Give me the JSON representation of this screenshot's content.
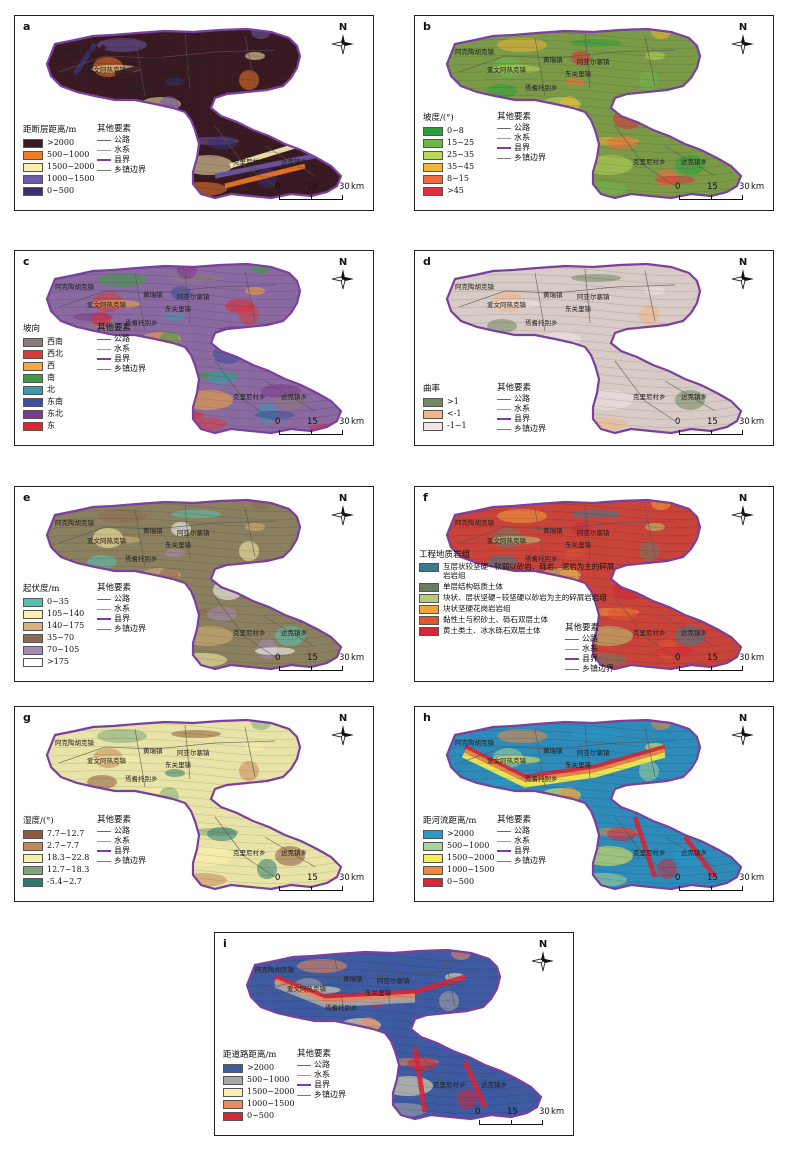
{
  "compass_letter": "N",
  "scale": {
    "ticks": [
      "0",
      "15",
      "30"
    ],
    "unit": "km"
  },
  "other_title": "其他要素",
  "other_items": [
    {
      "label": "公路",
      "color": "#666666"
    },
    {
      "label": "水系",
      "color": "#9a9a9a"
    },
    {
      "label": "县界",
      "color": "#7b3f9e"
    },
    {
      "label": "乡镇边界",
      "color": "#777777"
    }
  ],
  "towns": [
    "阿克陶胡克镇",
    "黄瑞镇",
    "阿亚尔塞镇",
    "爱文阿热克镇",
    "东关里镇",
    "焉耆托别乡",
    "克里尼村乡",
    "达克镇乡"
  ],
  "panels": [
    {
      "label": "a",
      "legend_title": "距断层距离/m",
      "base": "#3a1a22",
      "classes": [
        {
          "label": ">2000",
          "color": "#3a1a22"
        },
        {
          "label": "500~1000",
          "color": "#ef7a28"
        },
        {
          "label": "1500~2000",
          "color": "#fbeeb0"
        },
        {
          "label": "1000~1500",
          "color": "#6b5aa8"
        },
        {
          "label": "0~500",
          "color": "#3b3170"
        }
      ]
    },
    {
      "label": "b",
      "legend_title": "坡度/(°)",
      "base": "#7a9a48",
      "classes": [
        {
          "label": "0~8",
          "color": "#2e9e3c"
        },
        {
          "label": "15~25",
          "color": "#6fb64a"
        },
        {
          "label": "25~35",
          "color": "#b9d65a"
        },
        {
          "label": "35~45",
          "color": "#f4b43a"
        },
        {
          "label": "8~15",
          "color": "#ef6a3c"
        },
        {
          "label": ">45",
          "color": "#e02e3a"
        }
      ]
    },
    {
      "label": "c",
      "legend_title": "坡向",
      "base": "#8a6aa0",
      "classes": [
        {
          "label": "西南",
          "color": "#8c7b78"
        },
        {
          "label": "西北",
          "color": "#d83a3a"
        },
        {
          "label": "西",
          "color": "#f4a93a"
        },
        {
          "label": "南",
          "color": "#3e9a44"
        },
        {
          "label": "北",
          "color": "#3a9ab0"
        },
        {
          "label": "东南",
          "color": "#3c4f9a"
        },
        {
          "label": "东北",
          "color": "#7e3a8e"
        },
        {
          "label": "东",
          "color": "#e3262e"
        }
      ]
    },
    {
      "label": "d",
      "legend_title": "曲率",
      "base": "#d8cbc6",
      "classes": [
        {
          "label": ">1",
          "color": "#6f8a5e"
        },
        {
          "label": "<-1",
          "color": "#f3b683"
        },
        {
          "label": "-1~1",
          "color": "#f4e3e8"
        }
      ]
    },
    {
      "label": "e",
      "legend_title": "起伏度/m",
      "base": "#8a8060",
      "classes": [
        {
          "label": "0~35",
          "color": "#58c0b0"
        },
        {
          "label": "105~140",
          "color": "#fbf0a8"
        },
        {
          "label": "140~175",
          "color": "#d8b278"
        },
        {
          "label": "35~70",
          "color": "#8e6a52"
        },
        {
          "label": "70~105",
          "color": "#a58ab8"
        },
        {
          "label": ">175",
          "color": "#ffffff"
        }
      ]
    },
    {
      "label": "f",
      "legend_title": "工程地质岩组",
      "base": "#c8443a",
      "classes": [
        {
          "label": "互层状较坚硬~软弱以砂岩、砾岩、泥岩为主的碎屑岩岩组",
          "color": "#3e7a8e"
        },
        {
          "label": "单层结构砾质土体",
          "color": "#6e7a64"
        },
        {
          "label": "块状、层状坚硬~较坚硬以砂岩为主的碎屑岩岩组",
          "color": "#b6cc7a"
        },
        {
          "label": "块状坚硬花岗岩岩组",
          "color": "#f3a23c"
        },
        {
          "label": "黏性土与积砂土、砾石双层土体",
          "color": "#e0562e"
        },
        {
          "label": "黄土类土、冰水砾石双层土体",
          "color": "#d6263a"
        }
      ]
    },
    {
      "label": "g",
      "legend_title": "湿度/(°)",
      "base": "#e8e4a8",
      "classes": [
        {
          "label": "7.7~12.7",
          "color": "#8e5a3c"
        },
        {
          "label": "2.7~7.7",
          "color": "#c88658"
        },
        {
          "label": "18.3~22.8",
          "color": "#fbf0a8"
        },
        {
          "label": "12.7~18.3",
          "color": "#7ea678"
        },
        {
          "label": "-5.4~2.7",
          "color": "#2e7a6e"
        }
      ]
    },
    {
      "label": "h",
      "legend_title": "距河流距离/m",
      "base": "#2e8ab8",
      "classes": [
        {
          "label": ">2000",
          "color": "#2a9ac8"
        },
        {
          "label": "500~1000",
          "color": "#a8d49a"
        },
        {
          "label": "1500~2000",
          "color": "#f6ee4a"
        },
        {
          "label": "1000~1500",
          "color": "#f08a3a"
        },
        {
          "label": "0~500",
          "color": "#d6263a"
        }
      ]
    },
    {
      "label": "i",
      "legend_title": "距道路距离/m",
      "base": "#3e5aa0",
      "classes": [
        {
          "label": ">2000",
          "color": "#3e5aa0"
        },
        {
          "label": "500~1000",
          "color": "#a8a8a8"
        },
        {
          "label": "1500~2000",
          "color": "#fbeeb0"
        },
        {
          "label": "1000~1500",
          "color": "#f08a5a"
        },
        {
          "label": "0~500",
          "color": "#d6263a"
        }
      ]
    }
  ]
}
